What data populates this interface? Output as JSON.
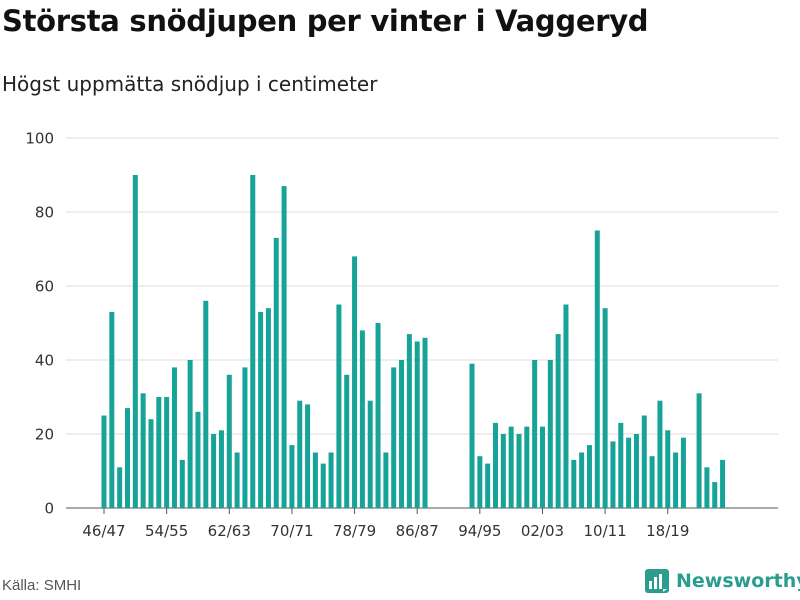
{
  "header": {
    "title": "Största snödjupen per vinter i Vaggeryd",
    "subtitle": "Högst uppmätta snödjup i centimeter"
  },
  "footer": {
    "source": "Källa: SMHI",
    "brand": "Newsworthy",
    "brand_icon": "newsworthy-logo-icon"
  },
  "colors": {
    "bar": "#17a398",
    "grid": "#dddddd",
    "axis_text": "#333333",
    "brand": "#2a9d8f"
  },
  "chart_data": {
    "type": "bar",
    "title": "Största snödjupen per vinter i Vaggeryd",
    "subtitle": "Högst uppmätta snödjup i centimeter",
    "xlabel": "",
    "ylabel": "",
    "ylim": [
      0,
      100
    ],
    "yticks": [
      0,
      20,
      40,
      60,
      80,
      100
    ],
    "grid": true,
    "first_winter_start_year": 1946,
    "xtick_labels": [
      "46/47",
      "54/55",
      "62/63",
      "70/71",
      "78/79",
      "86/87",
      "94/95",
      "02/03",
      "10/11",
      "18/19"
    ],
    "xtick_indices": [
      0,
      8,
      16,
      24,
      32,
      40,
      48,
      56,
      64,
      72
    ],
    "values": [
      25,
      53,
      11,
      27,
      90,
      31,
      24,
      30,
      30,
      38,
      13,
      40,
      26,
      56,
      20,
      21,
      36,
      15,
      38,
      90,
      53,
      54,
      73,
      87,
      17,
      29,
      28,
      15,
      12,
      15,
      55,
      36,
      68,
      48,
      29,
      50,
      15,
      38,
      40,
      47,
      45,
      46,
      null,
      null,
      null,
      null,
      null,
      39,
      14,
      12,
      23,
      20,
      22,
      20,
      22,
      40,
      22,
      40,
      47,
      55,
      13,
      15,
      17,
      75,
      54,
      18,
      23,
      19,
      20,
      25,
      14,
      29,
      21,
      15,
      19,
      null,
      31,
      11,
      7,
      13
    ]
  }
}
